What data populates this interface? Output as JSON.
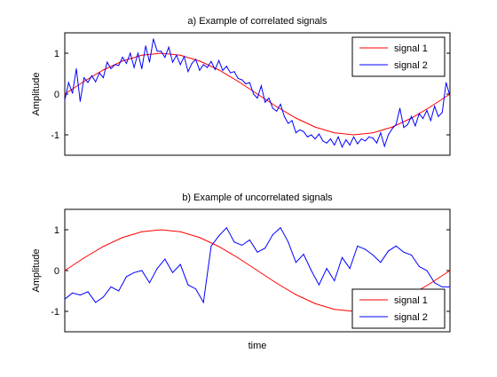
{
  "chart_data": [
    {
      "type": "line",
      "title": "a) Example of correlated signals",
      "xlabel": "",
      "ylabel": "Amplitude",
      "xlim": [
        0,
        100
      ],
      "ylim": [
        -1.5,
        1.5
      ],
      "yticks": [
        -1,
        0,
        1
      ],
      "ytick_labels": [
        "-1",
        "0",
        "1"
      ],
      "grid": false,
      "legend_position": "top-right",
      "colors": {
        "signal 1": "#ff0000",
        "signal 2": "#0000ff"
      },
      "series": [
        {
          "name": "signal 1",
          "x": [
            0,
            5,
            10,
            15,
            20,
            25,
            30,
            35,
            40,
            45,
            50,
            55,
            60,
            65,
            70,
            75,
            80,
            85,
            90,
            95,
            100
          ],
          "values": [
            0.0,
            0.31,
            0.59,
            0.81,
            0.95,
            1.0,
            0.95,
            0.81,
            0.59,
            0.31,
            0.0,
            -0.31,
            -0.59,
            -0.81,
            -0.95,
            -1.0,
            -0.95,
            -0.81,
            -0.59,
            -0.31,
            0.0
          ]
        },
        {
          "name": "signal 2",
          "x": [
            0,
            1,
            2,
            3,
            4,
            5,
            6,
            7,
            8,
            9,
            10,
            11,
            12,
            13,
            14,
            15,
            16,
            17,
            18,
            19,
            20,
            21,
            22,
            23,
            24,
            25,
            26,
            27,
            28,
            29,
            30,
            31,
            32,
            33,
            34,
            35,
            36,
            37,
            38,
            39,
            40,
            41,
            42,
            43,
            44,
            45,
            46,
            47,
            48,
            49,
            50,
            51,
            52,
            53,
            54,
            55,
            56,
            57,
            58,
            59,
            60,
            61,
            62,
            63,
            64,
            65,
            66,
            67,
            68,
            69,
            70,
            71,
            72,
            73,
            74,
            75,
            76,
            77,
            78,
            79,
            80,
            81,
            82,
            83,
            84,
            85,
            86,
            87,
            88,
            89,
            90,
            91,
            92,
            93,
            94,
            95,
            96,
            97,
            98,
            99,
            100
          ],
          "values": [
            -0.15,
            0.28,
            0.02,
            0.62,
            -0.18,
            0.4,
            0.28,
            0.45,
            0.3,
            0.52,
            0.4,
            0.78,
            0.62,
            0.72,
            0.7,
            0.9,
            0.75,
            1.0,
            0.65,
            1.0,
            0.62,
            1.18,
            0.78,
            1.35,
            1.05,
            1.05,
            0.9,
            1.15,
            0.78,
            0.95,
            0.72,
            0.92,
            0.55,
            0.75,
            0.85,
            0.58,
            0.72,
            0.65,
            0.8,
            0.6,
            0.82,
            0.58,
            0.68,
            0.52,
            0.55,
            0.38,
            0.35,
            0.25,
            0.28,
            0.0,
            -0.1,
            0.2,
            -0.2,
            -0.1,
            -0.35,
            -0.42,
            -0.25,
            -0.55,
            -0.72,
            -0.65,
            -0.95,
            -0.88,
            -0.92,
            -1.05,
            -1.0,
            -1.1,
            -0.98,
            -1.15,
            -1.2,
            -1.1,
            -1.25,
            -1.05,
            -1.3,
            -1.12,
            -1.25,
            -1.05,
            -1.22,
            -1.1,
            -1.15,
            -1.05,
            -1.08,
            -1.2,
            -0.95,
            -1.28,
            -1.0,
            -0.85,
            -0.75,
            -0.35,
            -0.82,
            -0.75,
            -0.55,
            -0.78,
            -0.48,
            -0.6,
            -0.4,
            -0.65,
            -0.3,
            -0.55,
            -0.45,
            0.28,
            -0.05
          ]
        }
      ]
    },
    {
      "type": "line",
      "title": "b) Example of uncorrelated signals",
      "xlabel": "time",
      "ylabel": "Amplitude",
      "xlim": [
        0,
        100
      ],
      "ylim": [
        -1.5,
        1.5
      ],
      "yticks": [
        -1,
        0,
        1
      ],
      "ytick_labels": [
        "-1",
        "0",
        "1"
      ],
      "grid": false,
      "legend_position": "bottom-right",
      "colors": {
        "signal 1": "#ff0000",
        "signal 2": "#0000ff"
      },
      "series": [
        {
          "name": "signal 1",
          "x": [
            0,
            5,
            10,
            15,
            20,
            25,
            30,
            35,
            40,
            45,
            50,
            55,
            60,
            65,
            70,
            75,
            80,
            85,
            90,
            95,
            100
          ],
          "values": [
            0.0,
            0.31,
            0.59,
            0.81,
            0.95,
            1.0,
            0.95,
            0.81,
            0.59,
            0.31,
            0.0,
            -0.31,
            -0.59,
            -0.81,
            -0.95,
            -1.0,
            -0.95,
            -0.81,
            -0.59,
            -0.31,
            0.0
          ]
        },
        {
          "name": "signal 2",
          "x": [
            0,
            2,
            4,
            6,
            8,
            10,
            12,
            14,
            16,
            18,
            20,
            22,
            24,
            26,
            28,
            30,
            32,
            34,
            36,
            38,
            40,
            42,
            44,
            46,
            48,
            50,
            52,
            54,
            56,
            58,
            60,
            62,
            64,
            66,
            68,
            70,
            72,
            74,
            76,
            78,
            80,
            82,
            84,
            86,
            88,
            90,
            92,
            94,
            96,
            98,
            100
          ],
          "values": [
            -0.7,
            -0.55,
            -0.6,
            -0.52,
            -0.78,
            -0.65,
            -0.4,
            -0.5,
            -0.15,
            -0.05,
            0.0,
            -0.3,
            0.05,
            0.28,
            -0.05,
            0.15,
            -0.35,
            -0.45,
            -0.78,
            0.6,
            0.85,
            1.05,
            0.7,
            0.62,
            0.75,
            0.45,
            0.55,
            0.88,
            1.05,
            0.7,
            0.2,
            0.4,
            0.0,
            -0.35,
            0.05,
            -0.25,
            0.32,
            0.05,
            0.6,
            0.52,
            0.38,
            0.2,
            0.48,
            0.6,
            0.45,
            0.38,
            0.1,
            0.0,
            -0.3,
            -0.4,
            -0.4
          ]
        }
      ]
    }
  ]
}
